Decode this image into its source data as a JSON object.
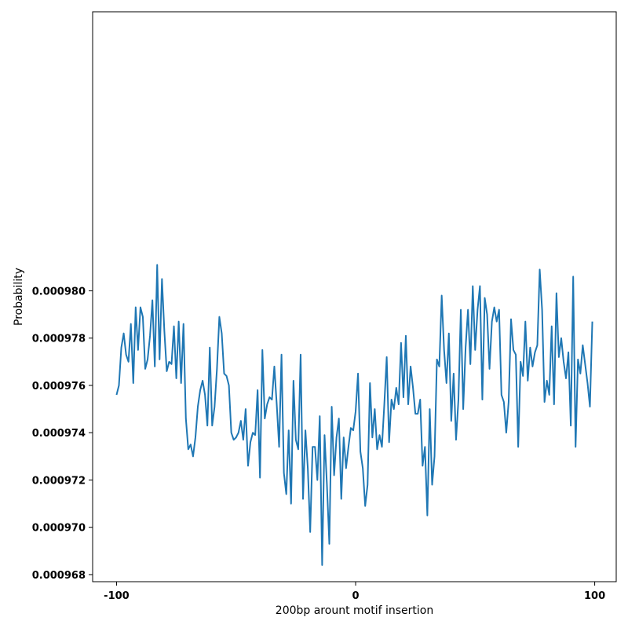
{
  "chart_data": {
    "type": "line",
    "title": "",
    "xlabel": "200bp arount motif insertion",
    "ylabel": "Probability",
    "xlim": [
      -110,
      109
    ],
    "ylim": [
      0.0009677,
      0.0009918
    ],
    "xticks": [
      -100,
      0,
      100
    ],
    "xtick_labels": [
      "-100",
      "0",
      "100"
    ],
    "yticks": [
      0.000968,
      0.00097,
      0.000972,
      0.000974,
      0.000976,
      0.000978,
      0.00098
    ],
    "ytick_labels": [
      "0.000968",
      "0.000970",
      "0.000972",
      "0.000974",
      "0.000976",
      "0.000978",
      "0.000980"
    ],
    "grid": false,
    "line_color": "#1f77b4",
    "series": [
      {
        "x_start": -100,
        "x_step": 1,
        "values": [
          0.0009756,
          0.000976,
          0.0009776,
          0.0009782,
          0.0009773,
          0.000977,
          0.0009786,
          0.0009761,
          0.0009793,
          0.0009775,
          0.0009793,
          0.0009789,
          0.0009767,
          0.0009771,
          0.0009781,
          0.0009796,
          0.0009768,
          0.0009811,
          0.0009771,
          0.0009805,
          0.0009783,
          0.0009766,
          0.000977,
          0.0009769,
          0.0009785,
          0.0009763,
          0.0009787,
          0.0009761,
          0.0009786,
          0.0009746,
          0.0009733,
          0.0009735,
          0.000973,
          0.0009738,
          0.0009751,
          0.0009758,
          0.0009762,
          0.0009756,
          0.0009743,
          0.0009776,
          0.0009743,
          0.0009751,
          0.0009767,
          0.0009789,
          0.0009782,
          0.0009765,
          0.0009764,
          0.000976,
          0.000974,
          0.0009737,
          0.0009738,
          0.000974,
          0.0009745,
          0.0009737,
          0.000975,
          0.0009726,
          0.0009736,
          0.000974,
          0.0009739,
          0.0009758,
          0.0009721,
          0.0009775,
          0.0009746,
          0.0009752,
          0.0009755,
          0.0009754,
          0.0009768,
          0.0009752,
          0.0009734,
          0.0009773,
          0.0009723,
          0.0009714,
          0.0009741,
          0.000971,
          0.0009762,
          0.0009737,
          0.0009733,
          0.0009773,
          0.0009712,
          0.0009741,
          0.0009725,
          0.0009698,
          0.0009734,
          0.0009734,
          0.000972,
          0.0009747,
          0.0009684,
          0.0009739,
          0.0009718,
          0.0009693,
          0.0009751,
          0.0009722,
          0.0009738,
          0.0009746,
          0.0009712,
          0.0009738,
          0.0009725,
          0.0009734,
          0.0009742,
          0.0009741,
          0.0009749,
          0.0009765,
          0.0009732,
          0.0009725,
          0.0009709,
          0.0009718,
          0.0009761,
          0.0009738,
          0.000975,
          0.0009733,
          0.0009739,
          0.0009734,
          0.0009752,
          0.0009772,
          0.0009736,
          0.0009754,
          0.000975,
          0.0009759,
          0.0009752,
          0.0009778,
          0.0009755,
          0.0009781,
          0.0009752,
          0.0009768,
          0.0009759,
          0.0009748,
          0.0009748,
          0.0009754,
          0.0009726,
          0.0009734,
          0.0009705,
          0.000975,
          0.0009718,
          0.000973,
          0.0009771,
          0.0009768,
          0.0009798,
          0.0009775,
          0.0009761,
          0.0009782,
          0.0009745,
          0.0009765,
          0.0009737,
          0.0009754,
          0.0009792,
          0.000975,
          0.0009776,
          0.0009792,
          0.0009769,
          0.0009802,
          0.0009775,
          0.0009792,
          0.0009802,
          0.0009754,
          0.0009797,
          0.000979,
          0.0009767,
          0.0009787,
          0.0009793,
          0.0009787,
          0.0009792,
          0.0009756,
          0.0009753,
          0.000974,
          0.0009753,
          0.0009788,
          0.0009775,
          0.0009773,
          0.0009734,
          0.000977,
          0.0009764,
          0.0009787,
          0.0009762,
          0.0009776,
          0.0009768,
          0.0009774,
          0.0009777,
          0.0009809,
          0.0009792,
          0.0009753,
          0.0009762,
          0.0009756,
          0.0009785,
          0.0009752,
          0.0009799,
          0.0009772,
          0.000978,
          0.000977,
          0.0009763,
          0.0009774,
          0.0009743,
          0.0009806,
          0.0009734,
          0.0009771,
          0.0009765,
          0.0009777,
          0.0009769,
          0.0009761,
          0.0009751,
          0.0009787
        ]
      }
    ]
  }
}
